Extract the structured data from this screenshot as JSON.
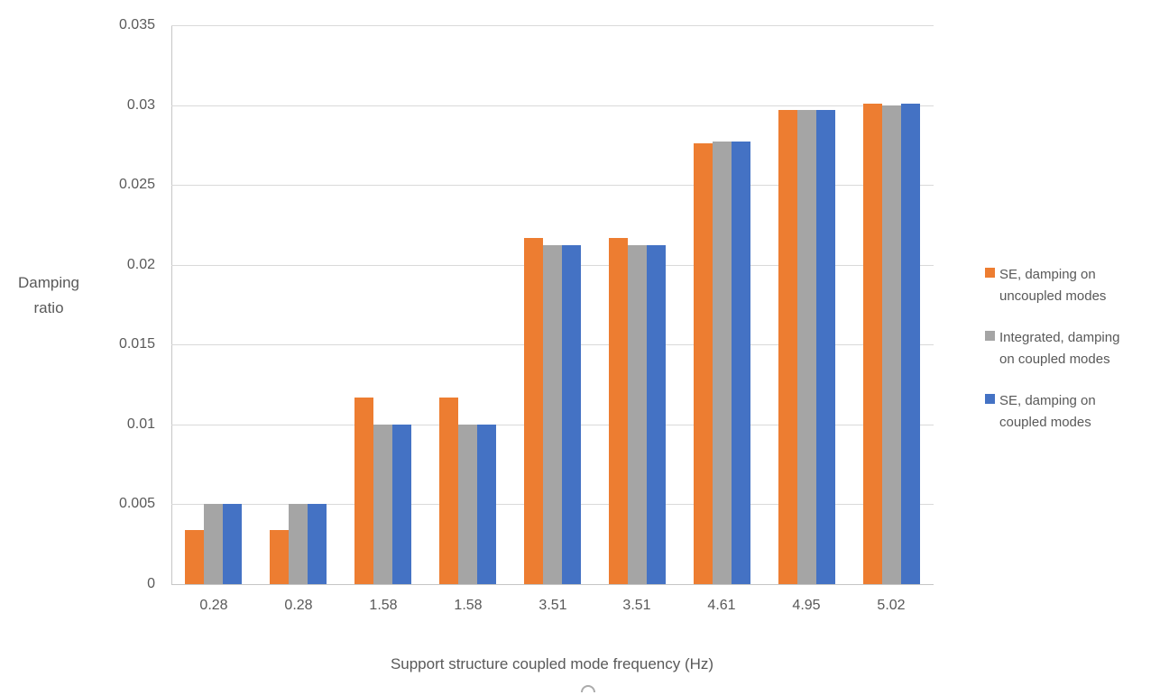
{
  "chart_data": {
    "type": "bar",
    "categories": [
      "0.28",
      "0.28",
      "1.58",
      "1.58",
      "3.51",
      "3.51",
      "4.61",
      "4.95",
      "5.02"
    ],
    "series": [
      {
        "name": "SE, damping on uncoupled modes",
        "color": "#ED7D31",
        "values": [
          0.0034,
          0.0034,
          0.0117,
          0.0117,
          0.0217,
          0.0217,
          0.0276,
          0.0297,
          0.0301
        ]
      },
      {
        "name": "Integrated, damping on coupled modes",
        "color": "#A5A5A5",
        "values": [
          0.005,
          0.005,
          0.01,
          0.01,
          0.0212,
          0.0212,
          0.0277,
          0.0297,
          0.03
        ]
      },
      {
        "name": "SE, damping on coupled modes",
        "color": "#4472C4",
        "values": [
          0.005,
          0.005,
          0.01,
          0.01,
          0.0212,
          0.0212,
          0.0277,
          0.0297,
          0.0301
        ]
      }
    ],
    "title": "",
    "xlabel": "Support structure coupled mode frequency (Hz)",
    "ylabel_lines": [
      "Damping",
      "ratio"
    ],
    "ylim": [
      0,
      0.035
    ],
    "ytick_step": 0.005,
    "yticks": [
      "0",
      "0.005",
      "0.01",
      "0.015",
      "0.02",
      "0.025",
      "0.03",
      "0.035"
    ],
    "grid": true,
    "legend_position": "right",
    "legend": [
      {
        "label_lines": [
          "SE, damping on",
          "uncoupled modes"
        ],
        "color": "#ED7D31"
      },
      {
        "label_lines": [
          "Integrated, damping",
          "on coupled modes"
        ],
        "color": "#A5A5A5"
      },
      {
        "label_lines": [
          "SE, damping on",
          "coupled modes"
        ],
        "color": "#4472C4"
      }
    ]
  },
  "colors": {
    "text": "#595959",
    "gridline": "#D9D9D9",
    "axis_line": "#C6C6C6"
  }
}
